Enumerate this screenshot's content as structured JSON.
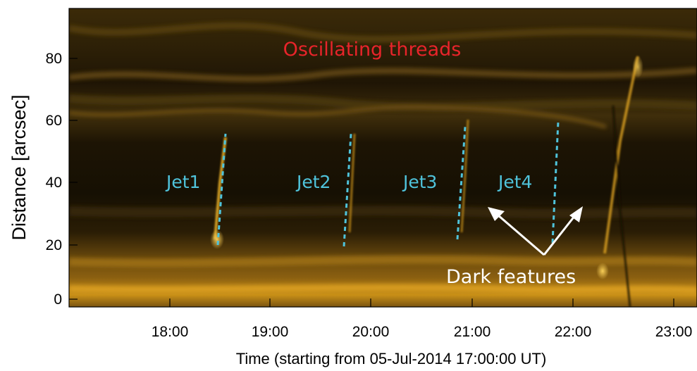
{
  "axes": {
    "ylabel": "Distance [arcsec]",
    "xlabel": "Time (starting from 05-Jul-2014 17:00:00 UT)",
    "y_ticks": [
      "0",
      "20",
      "40",
      "60",
      "80"
    ],
    "x_ticks": [
      "18:00",
      "19:00",
      "20:00",
      "21:00",
      "22:00",
      "23:00"
    ]
  },
  "annotations": {
    "title": "Oscillating threads",
    "jets": [
      "Jet1",
      "Jet2",
      "Jet3",
      "Jet4"
    ],
    "dark": "Dark features"
  },
  "colors": {
    "title": "#e8242a",
    "jet": "#4fc3db",
    "dark": "#ffffff",
    "bright": "#e7a117",
    "background": "#1a1206"
  }
}
